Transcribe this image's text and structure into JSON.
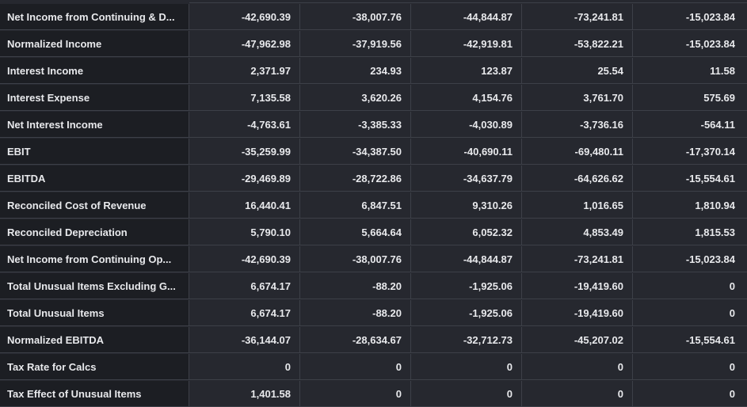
{
  "table": {
    "rows": [
      {
        "label": "Net Income from Continuing & D...",
        "values": [
          "-42,690.39",
          "-38,007.76",
          "-44,844.87",
          "-73,241.81",
          "-15,023.84"
        ]
      },
      {
        "label": "Normalized Income",
        "values": [
          "-47,962.98",
          "-37,919.56",
          "-42,919.81",
          "-53,822.21",
          "-15,023.84"
        ]
      },
      {
        "label": "Interest Income",
        "values": [
          "2,371.97",
          "234.93",
          "123.87",
          "25.54",
          "11.58"
        ]
      },
      {
        "label": "Interest Expense",
        "values": [
          "7,135.58",
          "3,620.26",
          "4,154.76",
          "3,761.70",
          "575.69"
        ]
      },
      {
        "label": "Net Interest Income",
        "values": [
          "-4,763.61",
          "-3,385.33",
          "-4,030.89",
          "-3,736.16",
          "-564.11"
        ]
      },
      {
        "label": "EBIT",
        "values": [
          "-35,259.99",
          "-34,387.50",
          "-40,690.11",
          "-69,480.11",
          "-17,370.14"
        ]
      },
      {
        "label": "EBITDA",
        "values": [
          "-29,469.89",
          "-28,722.86",
          "-34,637.79",
          "-64,626.62",
          "-15,554.61"
        ]
      },
      {
        "label": "Reconciled Cost of Revenue",
        "values": [
          "16,440.41",
          "6,847.51",
          "9,310.26",
          "1,016.65",
          "1,810.94"
        ]
      },
      {
        "label": "Reconciled Depreciation",
        "values": [
          "5,790.10",
          "5,664.64",
          "6,052.32",
          "4,853.49",
          "1,815.53"
        ]
      },
      {
        "label": "Net Income from Continuing Op...",
        "values": [
          "-42,690.39",
          "-38,007.76",
          "-44,844.87",
          "-73,241.81",
          "-15,023.84"
        ]
      },
      {
        "label": "Total Unusual Items Excluding G...",
        "values": [
          "6,674.17",
          "-88.20",
          "-1,925.06",
          "-19,419.60",
          "0"
        ]
      },
      {
        "label": "Total Unusual Items",
        "values": [
          "6,674.17",
          "-88.20",
          "-1,925.06",
          "-19,419.60",
          "0"
        ]
      },
      {
        "label": "Normalized EBITDA",
        "values": [
          "-36,144.07",
          "-28,634.67",
          "-32,712.73",
          "-45,207.02",
          "-15,554.61"
        ]
      },
      {
        "label": "Tax Rate for Calcs",
        "values": [
          "0",
          "0",
          "0",
          "0",
          "0"
        ]
      },
      {
        "label": "Tax Effect of Unusual Items",
        "values": [
          "1,401.58",
          "0",
          "0",
          "0",
          "0"
        ]
      }
    ]
  }
}
